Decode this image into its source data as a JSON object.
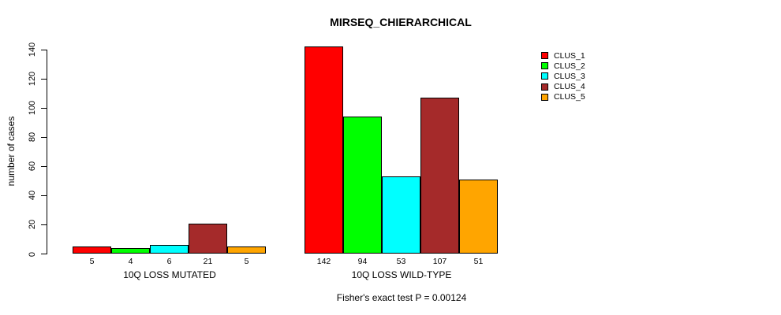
{
  "chart_data": {
    "type": "bar",
    "title": "MIRSEQ_CHIERARCHICAL",
    "subtitle": "Fisher's exact test P = 0.00124",
    "ylabel": "number of cases",
    "xlabel": "",
    "ylim": [
      0,
      140
    ],
    "yticks": [
      0,
      20,
      40,
      60,
      80,
      100,
      120,
      140
    ],
    "categories": [
      "10Q LOSS MUTATED",
      "10Q LOSS WILD-TYPE"
    ],
    "series": [
      {
        "name": "CLUS_1",
        "color": "#FF0000",
        "values": [
          5,
          142
        ]
      },
      {
        "name": "CLUS_2",
        "color": "#00FF00",
        "values": [
          4,
          94
        ]
      },
      {
        "name": "CLUS_3",
        "color": "#00FFFF",
        "values": [
          6,
          53
        ]
      },
      {
        "name": "CLUS_4",
        "color": "#A52A2A",
        "values": [
          21,
          107
        ]
      },
      {
        "name": "CLUS_5",
        "color": "#FFA500",
        "values": [
          5,
          51
        ]
      }
    ],
    "bar_value_labels": [
      [
        "5",
        "4",
        "6",
        "21",
        "5"
      ],
      [
        "142",
        "94",
        "53",
        "107",
        "51"
      ]
    ],
    "legend_position": "right",
    "grid": false,
    "axis_color": "#000000",
    "background_color": "#FFFFFF"
  }
}
